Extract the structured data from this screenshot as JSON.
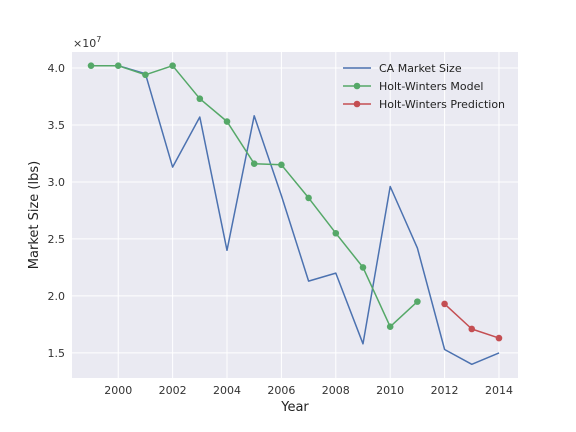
{
  "chart_data": {
    "type": "line",
    "title": "",
    "xlabel": "Year",
    "ylabel": "Market Size (lbs)",
    "y_offset_label": "×10",
    "y_offset_exponent": "7",
    "xlim": [
      1998.3,
      2014.7
    ],
    "ylim": [
      1.28,
      4.14
    ],
    "xticks": [
      2000,
      2002,
      2004,
      2006,
      2008,
      2010,
      2012,
      2014
    ],
    "xtick_labels": [
      "2000",
      "2002",
      "2004",
      "2006",
      "2008",
      "2010",
      "2012",
      "2014"
    ],
    "yticks": [
      1.5,
      2.0,
      2.5,
      3.0,
      3.5,
      4.0
    ],
    "ytick_labels": [
      "1.5",
      "2.0",
      "2.5",
      "3.0",
      "3.5",
      "4.0"
    ],
    "grid": true,
    "legend_position": "top-right",
    "series": [
      {
        "name": "CA Market Size",
        "color": "#4c72b0",
        "markers": false,
        "x": [
          1999,
          2000,
          2001,
          2002,
          2003,
          2004,
          2005,
          2006,
          2007,
          2008,
          2009,
          2010,
          2011,
          2012,
          2013,
          2014
        ],
        "y": [
          4.02,
          4.02,
          3.95,
          3.13,
          3.57,
          2.4,
          3.58,
          2.88,
          2.13,
          2.2,
          1.58,
          2.96,
          2.42,
          1.53,
          1.4,
          1.5
        ]
      },
      {
        "name": "Holt-Winters Model",
        "color": "#55a868",
        "markers": true,
        "x": [
          1999,
          2000,
          2001,
          2002,
          2003,
          2004,
          2005,
          2006,
          2007,
          2008,
          2009,
          2010,
          2011
        ],
        "y": [
          4.02,
          4.02,
          3.94,
          4.02,
          3.73,
          3.53,
          3.16,
          3.15,
          2.86,
          2.55,
          2.25,
          1.73,
          1.95
        ]
      },
      {
        "name": "Holt-Winters Prediction",
        "color": "#c44e52",
        "markers": true,
        "x": [
          2012,
          2013,
          2014
        ],
        "y": [
          1.93,
          1.71,
          1.63
        ]
      }
    ]
  }
}
